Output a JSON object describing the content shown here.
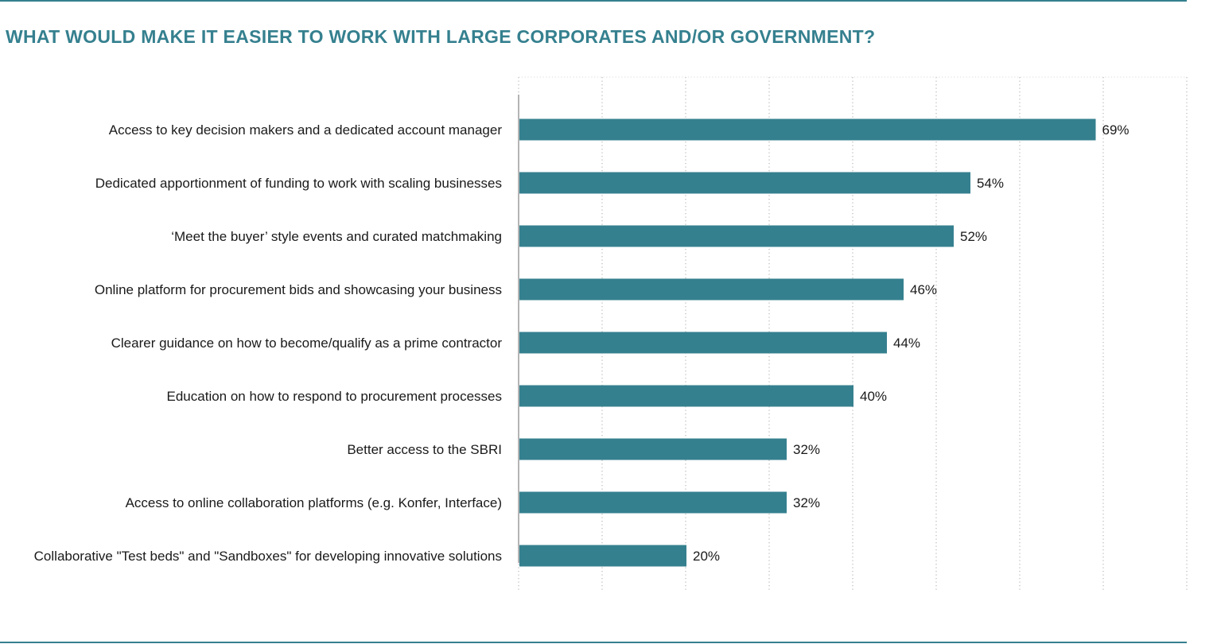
{
  "colors": {
    "accent": "#35808f",
    "bar": "#35808f",
    "grid": "#bdbdbd",
    "axis": "#b5b5b5",
    "text": "#1a1a1a"
  },
  "chart_data": {
    "type": "bar",
    "orientation": "horizontal",
    "title": "WHAT WOULD MAKE IT EASIER TO WORK WITH LARGE CORPORATES AND/OR GOVERNMENT?",
    "xlabel": "",
    "ylabel": "",
    "xlim": [
      0,
      80
    ],
    "grid": true,
    "legend": "none",
    "categories": [
      "Access to key decision makers and a dedicated account manager",
      "Dedicated apportionment of funding to work with scaling businesses",
      "‘Meet the buyer’ style events and curated matchmaking",
      "Online platform for procurement bids and showcasing your business",
      "Clearer guidance on how to become/qualify as a prime contractor",
      "Education on how to respond to procurement processes",
      "Better access to the SBRI",
      "Access to online collaboration platforms (e.g. Konfer, Interface)",
      "Collaborative \"Test beds\" and \"Sandboxes\" for developing innovative solutions"
    ],
    "values": [
      69,
      54,
      52,
      46,
      44,
      40,
      32,
      32,
      20
    ],
    "value_labels": [
      "69%",
      "54%",
      "52%",
      "46%",
      "44%",
      "40%",
      "32%",
      "32%",
      "20%"
    ]
  }
}
